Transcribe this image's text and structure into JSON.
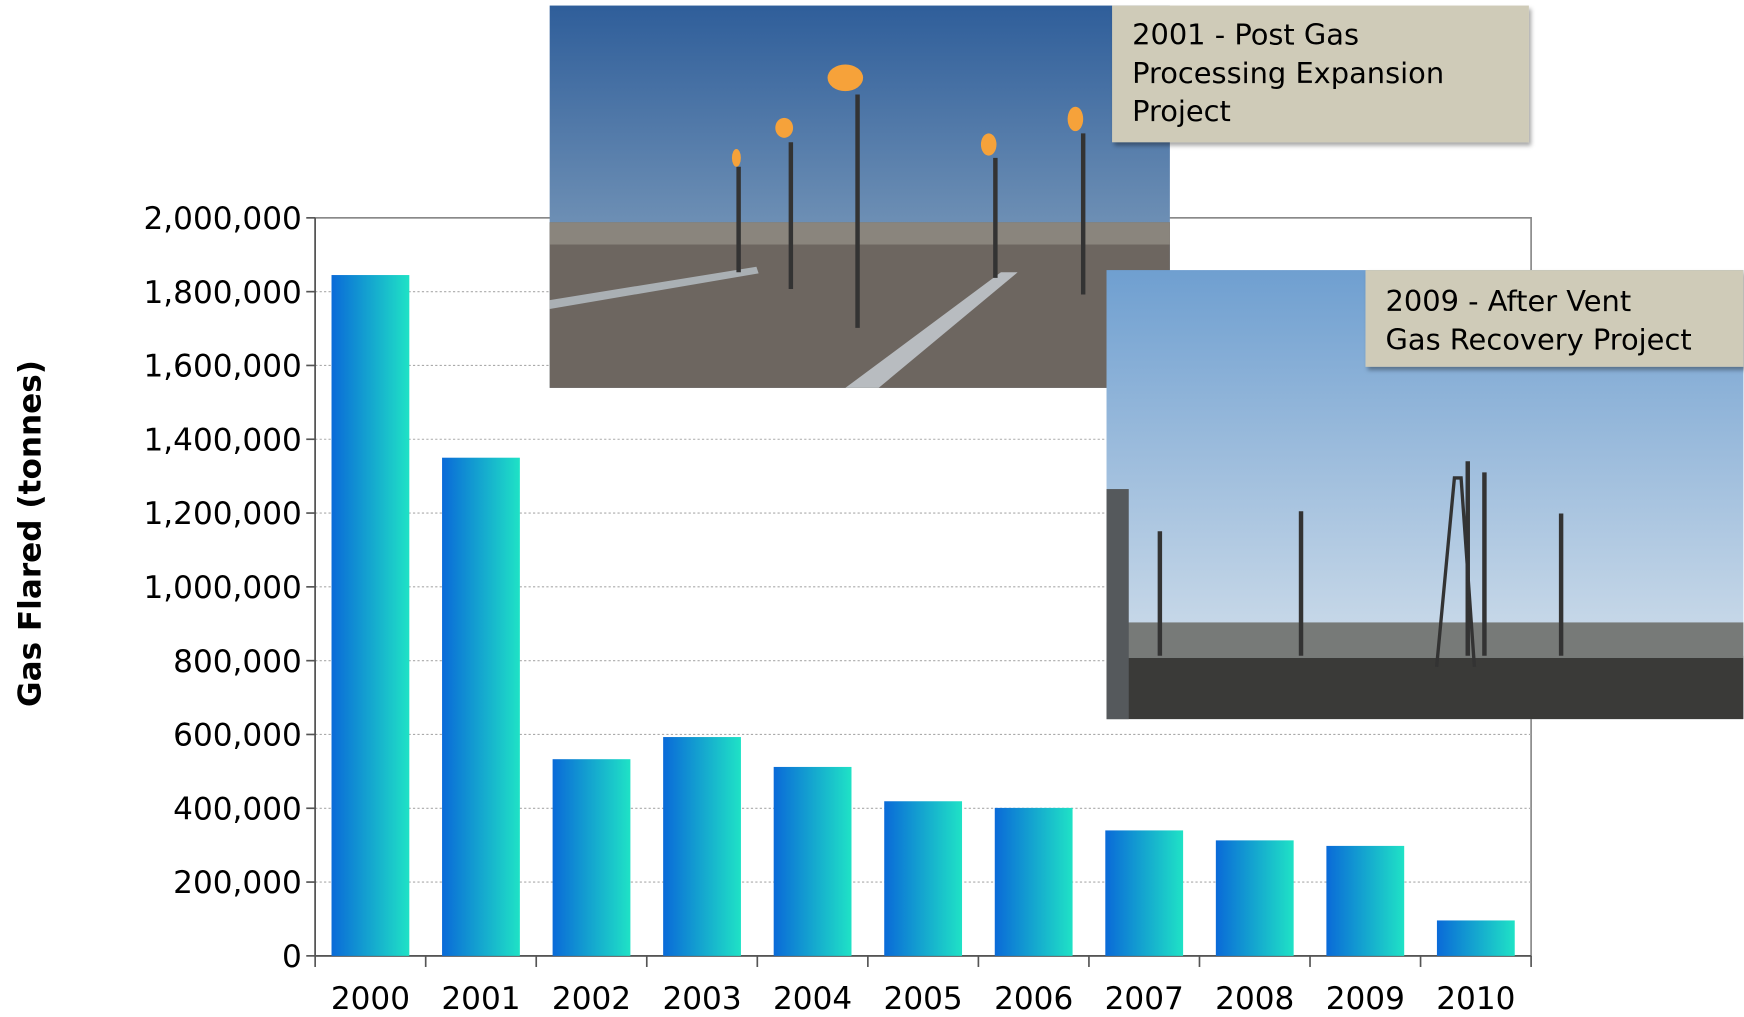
{
  "chart_data": {
    "type": "bar",
    "y_label": "Gas Flared (tonnes)",
    "categories": [
      "2000",
      "2001",
      "2002",
      "2003",
      "2004",
      "2005",
      "2006",
      "2007",
      "2008",
      "2009",
      "2010"
    ],
    "values": [
      1845000,
      1350000,
      533000,
      593000,
      512000,
      419000,
      401000,
      340000,
      313000,
      298000,
      96000
    ],
    "colors": [
      "#0a6ad8",
      "#1fe2c6"
    ],
    "ylim": [
      0,
      2000000
    ],
    "yticks": [
      0,
      {
        "value": 200000,
        "label": "200,000"
      },
      {
        "value": 400000,
        "label": "400,000"
      },
      {
        "value": 600000,
        "label": "600,000"
      },
      {
        "value": 800000,
        "label": "800,000"
      },
      {
        "value": 1000000,
        "label": "1,000,000"
      },
      {
        "value": 1200000,
        "label": "1,200,000"
      },
      {
        "value": 1400000,
        "label": "1,400,000"
      },
      {
        "value": 1600000,
        "label": "1,600,000"
      },
      {
        "value": 1800000,
        "label": "1,800,000"
      },
      {
        "value": 2000000,
        "label": "2,000,000"
      }
    ],
    "grid": true,
    "annotations": [
      [
        "2001 - Post Gas",
        "Processing Expansion",
        "Project"
      ],
      [
        "2009 - After Vent",
        "Gas Recovery Project"
      ]
    ]
  }
}
